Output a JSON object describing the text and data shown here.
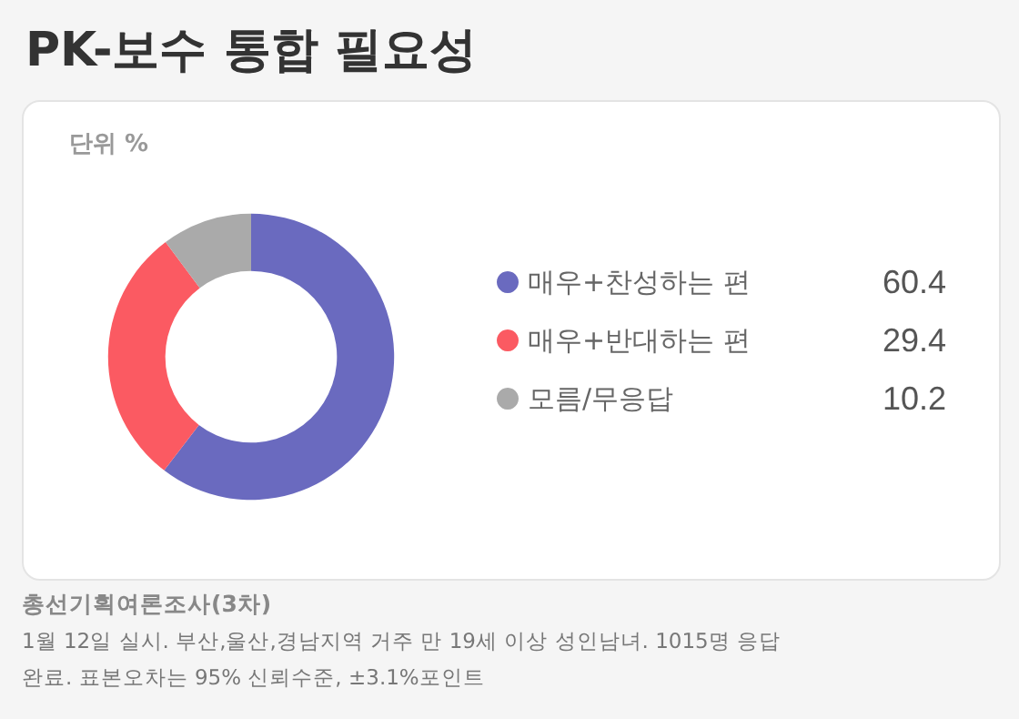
{
  "chart_data": {
    "type": "donut",
    "title": "PK-보수 통합 필요성",
    "subtitle": "단위 %",
    "categories": [
      "매우+찬성하는 편",
      "매우+반대하는 편",
      "모름/무응답"
    ],
    "values": [
      60.4,
      29.4,
      10.2
    ],
    "colors": [
      "#6a6abf",
      "#fb5a62",
      "#aaaaaa"
    ],
    "data_labels": true,
    "legend": "right",
    "annotations": [
      "총선기획여론조사(3차)",
      "1월 12일 실시. 부산,울산,경남지역 거주 만 19세 이상 성인남녀. 1015명 응답 완료. 표본오차는 95% 신뢰수준, ±3.1%포인트"
    ]
  }
}
